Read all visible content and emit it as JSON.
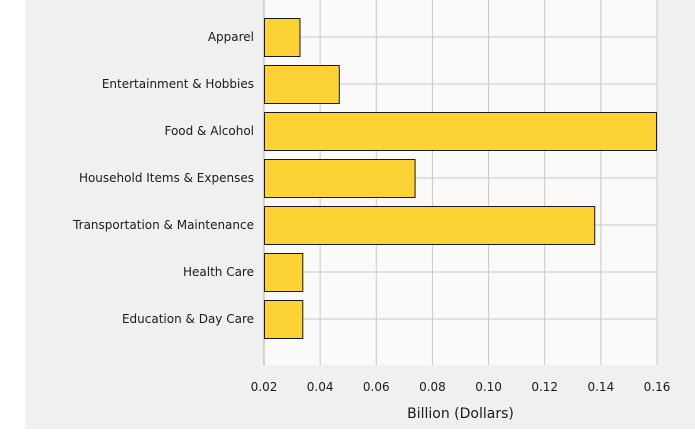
{
  "chart_data": {
    "type": "bar",
    "orientation": "horizontal",
    "categories": [
      "Apparel",
      "Entertainment & Hobbies",
      "Food & Alcohol",
      "Household Items & Expenses",
      "Transportation & Maintenance",
      "Health Care",
      "Education & Day Care"
    ],
    "values": [
      0.033,
      0.047,
      0.16,
      0.074,
      0.138,
      0.034,
      0.034
    ],
    "xlabel": "Billion (Dollars)",
    "ylabel": "",
    "xlim": [
      0.02,
      0.16
    ],
    "xticks": [
      "0.02",
      "0.04",
      "0.06",
      "0.08",
      "0.10",
      "0.12",
      "0.14",
      "0.16"
    ],
    "grid": true,
    "colors": {
      "bar_fill": "#FDD235",
      "bar_stroke": "#1a1a1a",
      "plot_bg": "#fafafa",
      "panel_bg": "#f0f0f0",
      "grid": "#c8c8c8"
    }
  }
}
